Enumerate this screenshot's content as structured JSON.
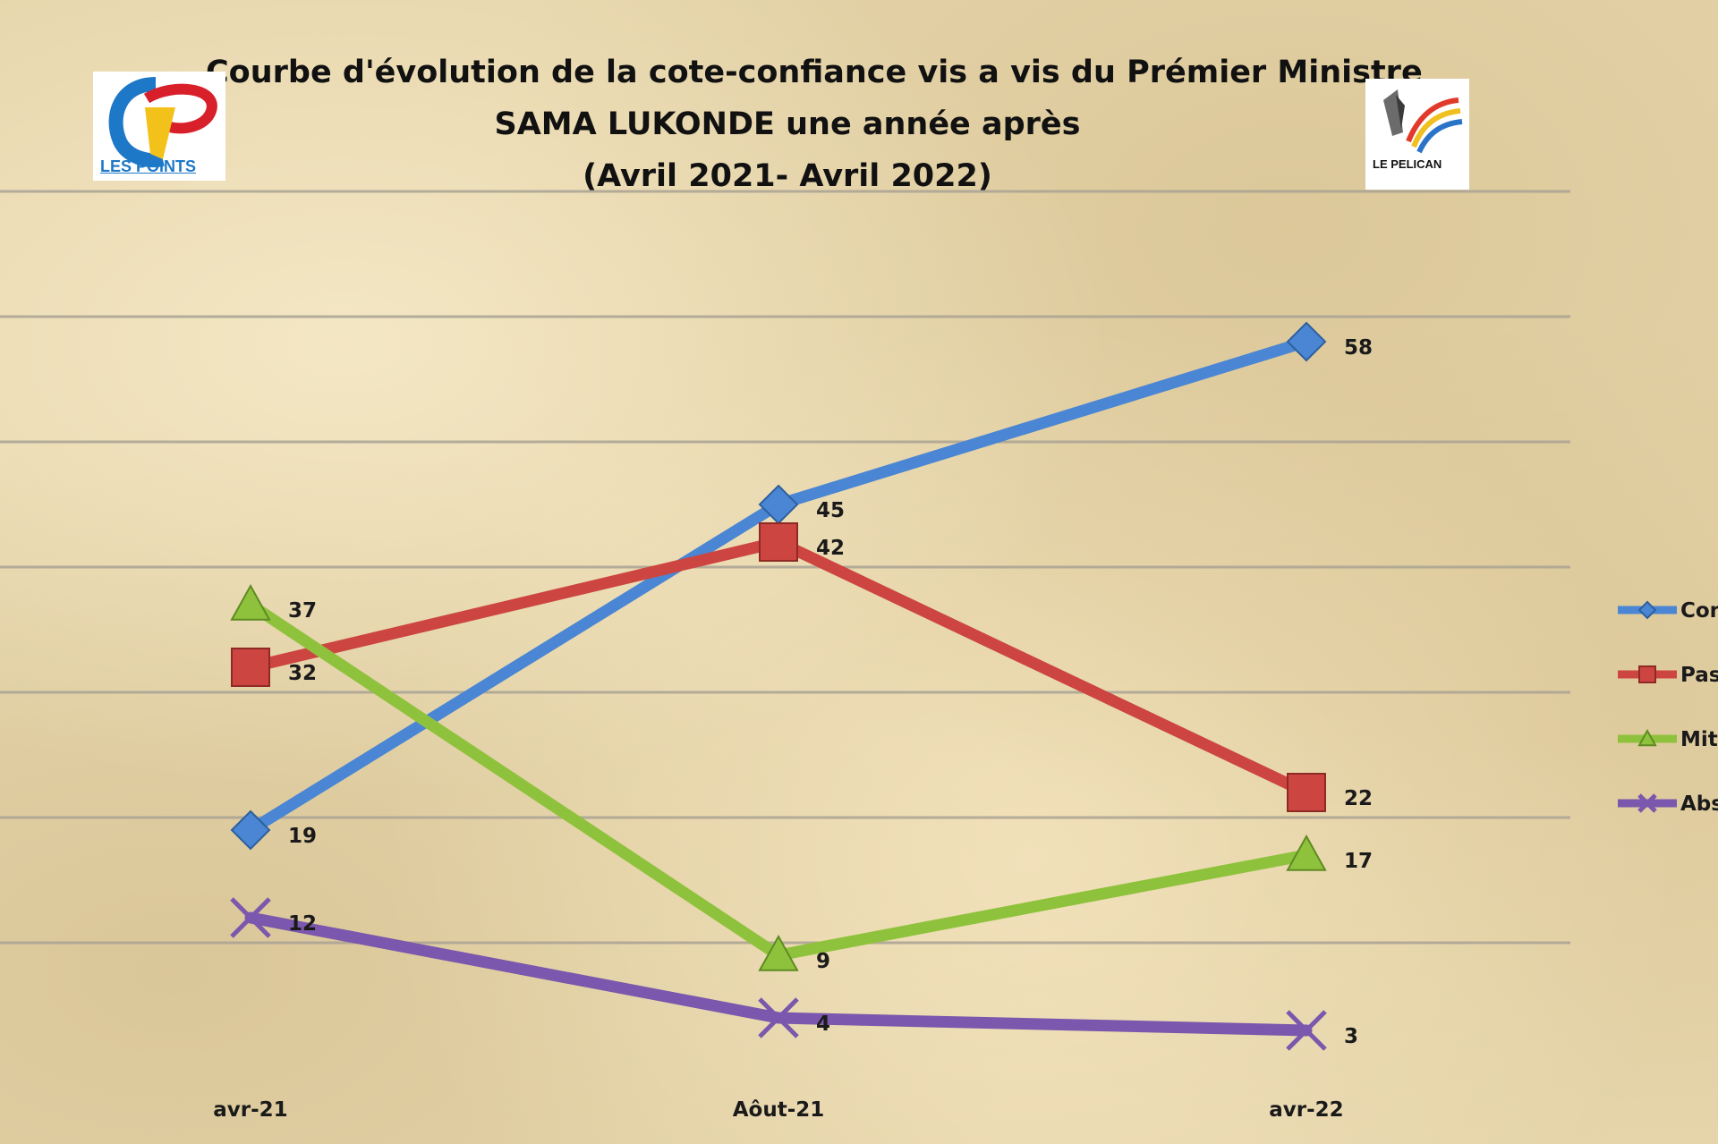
{
  "title": {
    "line1": "Courbe d'évolution de la cote-confiance vis a vis du Prémier Ministre",
    "line2": "SAMA LUKONDE une année après",
    "line3": "(Avril 2021- Avril 2022)"
  },
  "logos": {
    "left": {
      "text": "LES POINTS",
      "icon": "les-points-logo"
    },
    "right": {
      "text": "LE PELICAN",
      "icon": "le-pelican-logo"
    }
  },
  "colors": {
    "blue": "#4a86d4",
    "red": "#cc4540",
    "green": "#8fc23c",
    "purple": "#7b57ad",
    "grid": "#aaa394"
  },
  "chart_data": {
    "type": "line",
    "categories": [
      "avr-21",
      "Aôut-21",
      "avr-22"
    ],
    "series": [
      {
        "name": "Con",
        "color": "#4a86d4",
        "marker": "diamond",
        "values": [
          19,
          45,
          58
        ]
      },
      {
        "name": "Pas",
        "color": "#cc4540",
        "marker": "square",
        "values": [
          32,
          42,
          22
        ]
      },
      {
        "name": "Mit",
        "color": "#8fc23c",
        "marker": "triangle",
        "values": [
          37,
          9,
          17
        ]
      },
      {
        "name": "Abs",
        "color": "#7b57ad",
        "marker": "x",
        "values": [
          12,
          4,
          3
        ]
      }
    ],
    "ylim": [
      0,
      70
    ],
    "y_gridline_step": 10,
    "grid": true,
    "data_labels": true,
    "legend": "right"
  }
}
